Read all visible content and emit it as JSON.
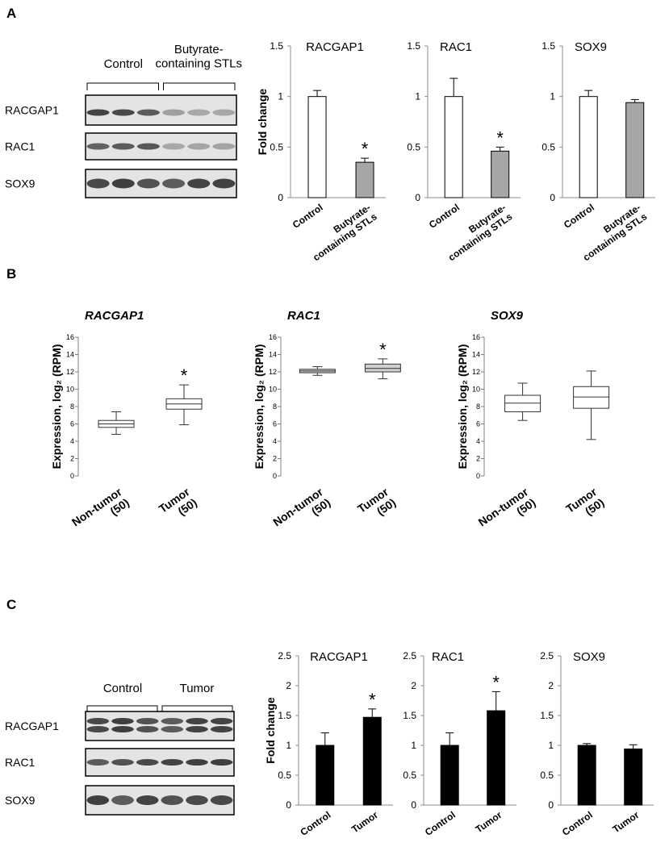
{
  "panels": [
    "A",
    "B",
    "C"
  ],
  "blots": [
    {
      "groups": [
        "Control",
        "Butyrate-containing STLs"
      ],
      "rows": [
        "RACGAP1",
        "RAC1",
        "SOX9"
      ]
    },
    {
      "groups": [
        "Control",
        "Tumor"
      ],
      "rows": [
        "RACGAP1",
        "RAC1",
        "SOX9"
      ]
    }
  ],
  "chart_data": [
    {
      "type": "bar",
      "title": "RACGAP1",
      "y_label": "Fold change",
      "categories": [
        "Control",
        "Butyrate-containing STLs"
      ],
      "values": [
        1.0,
        0.35
      ],
      "errors": [
        0.06,
        0.04
      ],
      "colors": [
        "#ffffff",
        "#a6a6a6"
      ],
      "significance": [
        null,
        "*"
      ],
      "ylim": [
        0,
        1.5
      ],
      "yticks": [
        0,
        0.5,
        1,
        1.5
      ]
    },
    {
      "type": "bar",
      "title": "RAC1",
      "categories": [
        "Control",
        "Butyrate-containing STLs"
      ],
      "values": [
        1.0,
        0.46
      ],
      "errors": [
        0.18,
        0.04
      ],
      "colors": [
        "#ffffff",
        "#a6a6a6"
      ],
      "significance": [
        null,
        "*"
      ],
      "ylim": [
        0,
        1.5
      ],
      "yticks": [
        0,
        0.5,
        1,
        1.5
      ]
    },
    {
      "type": "bar",
      "title": "SOX9",
      "categories": [
        "Control",
        "Butyrate-containing STLs"
      ],
      "values": [
        1.0,
        0.94
      ],
      "errors": [
        0.06,
        0.03
      ],
      "colors": [
        "#ffffff",
        "#a6a6a6"
      ],
      "significance": [
        null,
        null
      ],
      "ylim": [
        0,
        1.5
      ],
      "yticks": [
        0,
        0.5,
        1,
        1.5
      ]
    },
    {
      "type": "box",
      "title": "RACGAP1",
      "y_label": "Expression, log₂ (RPM)",
      "categories": [
        "Non-tumor (50)",
        "Tumor (50)"
      ],
      "boxes": [
        {
          "whisker_low": 4.8,
          "q1": 5.6,
          "median": 6.0,
          "q3": 6.4,
          "whisker_high": 7.4
        },
        {
          "whisker_low": 5.9,
          "q1": 7.7,
          "median": 8.3,
          "q3": 8.9,
          "whisker_high": 10.5
        }
      ],
      "significance": [
        null,
        "*"
      ],
      "ylim": [
        0,
        16
      ],
      "yticks": [
        0,
        2,
        4,
        6,
        8,
        10,
        12,
        14,
        16
      ]
    },
    {
      "type": "box",
      "title": "RAC1",
      "y_label": "Expression, log₂ (RPM)",
      "categories": [
        "Non-tumor (50)",
        "Tumor (50)"
      ],
      "boxes": [
        {
          "whisker_low": 11.6,
          "q1": 11.9,
          "median": 12.1,
          "q3": 12.3,
          "whisker_high": 12.6
        },
        {
          "whisker_low": 11.2,
          "q1": 12.0,
          "median": 12.4,
          "q3": 12.9,
          "whisker_high": 13.5
        }
      ],
      "significance": [
        null,
        "*"
      ],
      "ylim": [
        0,
        16
      ],
      "yticks": [
        0,
        2,
        4,
        6,
        8,
        10,
        12,
        14,
        16
      ]
    },
    {
      "type": "box",
      "title": "SOX9",
      "y_label": "Expression, log₂ (RPM)",
      "categories": [
        "Non-tumor (50)",
        "Tumor (50)"
      ],
      "boxes": [
        {
          "whisker_low": 6.4,
          "q1": 7.4,
          "median": 8.4,
          "q3": 9.3,
          "whisker_high": 10.7
        },
        {
          "whisker_low": 4.2,
          "q1": 7.8,
          "median": 9.1,
          "q3": 10.3,
          "whisker_high": 12.1
        }
      ],
      "significance": [
        null,
        null
      ],
      "ylim": [
        0,
        16
      ],
      "yticks": [
        0,
        2,
        4,
        6,
        8,
        10,
        12,
        14,
        16
      ]
    },
    {
      "type": "bar",
      "title": "RACGAP1",
      "y_label": "Fold change",
      "categories": [
        "Control",
        "Tumor"
      ],
      "values": [
        1.0,
        1.47
      ],
      "errors": [
        0.21,
        0.14
      ],
      "colors": [
        "#000000",
        "#000000"
      ],
      "significance": [
        null,
        "*"
      ],
      "ylim": [
        0,
        2.5
      ],
      "yticks": [
        0,
        0.5,
        1,
        1.5,
        2,
        2.5
      ]
    },
    {
      "type": "bar",
      "title": "RAC1",
      "categories": [
        "Control",
        "Tumor"
      ],
      "values": [
        1.0,
        1.58
      ],
      "errors": [
        0.21,
        0.32
      ],
      "colors": [
        "#000000",
        "#000000"
      ],
      "significance": [
        null,
        "*"
      ],
      "ylim": [
        0,
        2.5
      ],
      "yticks": [
        0,
        0.5,
        1,
        1.5,
        2,
        2.5
      ]
    },
    {
      "type": "bar",
      "title": "SOX9",
      "categories": [
        "Control",
        "Tumor"
      ],
      "values": [
        1.0,
        0.94
      ],
      "errors": [
        0.03,
        0.07
      ],
      "colors": [
        "#000000",
        "#000000"
      ],
      "significance": [
        null,
        null
      ],
      "ylim": [
        0,
        2.5
      ],
      "yticks": [
        0,
        0.5,
        1,
        1.5,
        2,
        2.5
      ]
    }
  ]
}
